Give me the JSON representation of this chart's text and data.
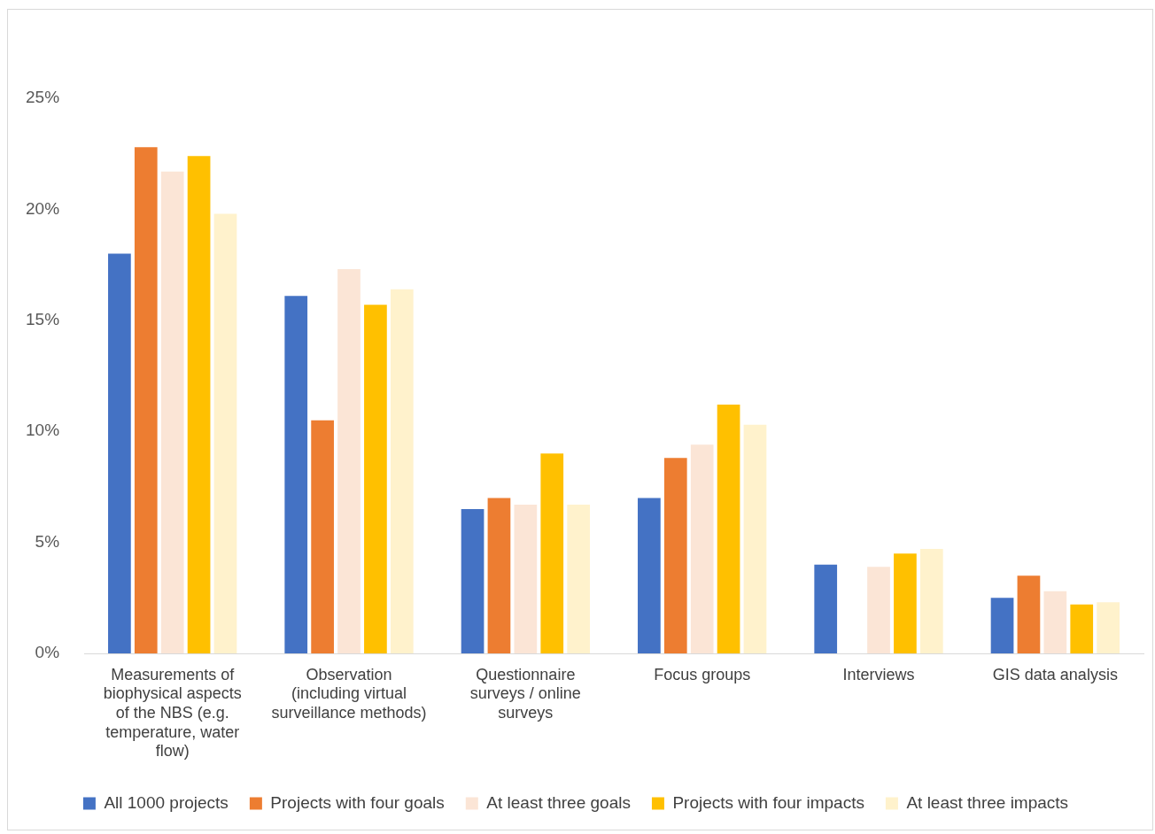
{
  "chart_data": {
    "type": "bar",
    "categories": [
      "Measurements of biophysical aspects of the NBS (e.g. temperature, water flow)",
      "Observation (including virtual surveillance methods)",
      "Questionnaire surveys / online surveys",
      "Focus groups",
      "Interviews",
      "GIS data analysis"
    ],
    "series": [
      {
        "name": "All 1000 projects",
        "color": "#4472c4",
        "values": [
          18.0,
          16.1,
          6.5,
          7.0,
          4.0,
          2.5
        ]
      },
      {
        "name": "Projects with four goals",
        "color": "#ed7d31",
        "values": [
          22.8,
          10.5,
          7.0,
          8.8,
          0,
          3.5
        ]
      },
      {
        "name": "At least three goals",
        "color": "#fbe5d6",
        "values": [
          21.7,
          17.3,
          6.7,
          9.4,
          3.9,
          2.8
        ]
      },
      {
        "name": "Projects with four impacts",
        "color": "#ffc000",
        "values": [
          22.4,
          15.7,
          9.0,
          11.2,
          4.5,
          2.2
        ]
      },
      {
        "name": "At least three impacts",
        "color": "#fff2cc",
        "values": [
          19.8,
          16.4,
          6.7,
          10.3,
          4.7,
          2.3
        ]
      }
    ],
    "ylim": [
      0,
      25
    ],
    "yticks": [
      {
        "value": 0,
        "label": "0%"
      },
      {
        "value": 5,
        "label": "5%"
      },
      {
        "value": 10,
        "label": "10%"
      },
      {
        "value": 15,
        "label": "15%"
      },
      {
        "value": 20,
        "label": "20%"
      },
      {
        "value": 25,
        "label": "25%"
      }
    ],
    "grid": false,
    "legend": "bottom"
  }
}
